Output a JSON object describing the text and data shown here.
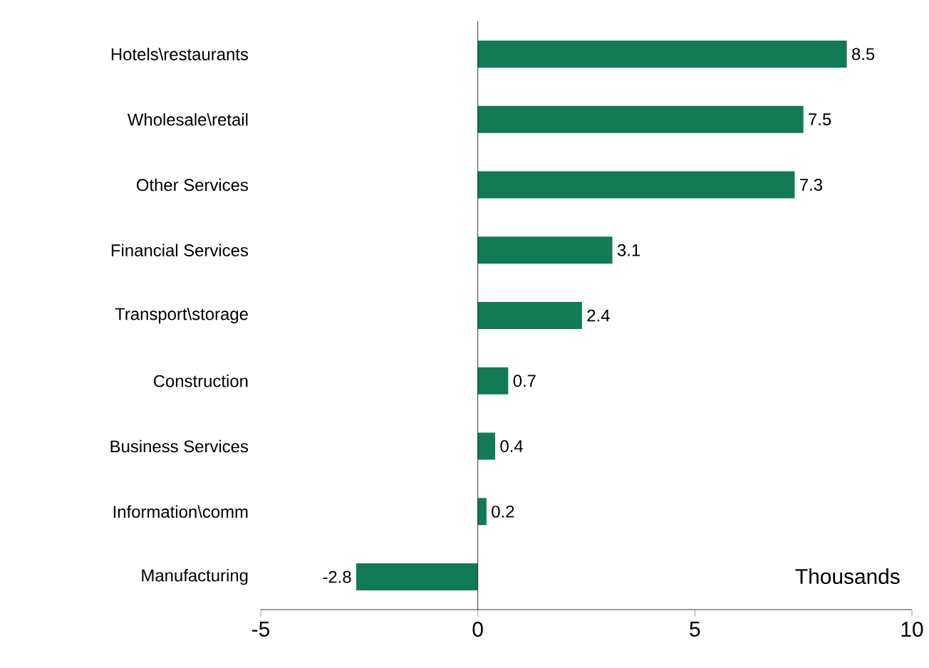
{
  "chart_data": {
    "type": "bar",
    "orientation": "horizontal",
    "categories": [
      "Hotels\\restaurants",
      "Wholesale\\retail",
      "Other Services",
      "Financial Services",
      "Transport\\storage",
      "Construction",
      "Business Services",
      "Information\\comm",
      "Manufacturing"
    ],
    "values": [
      8.5,
      7.5,
      7.3,
      3.1,
      2.4,
      0.7,
      0.4,
      0.2,
      -2.8
    ],
    "color": "#127a55",
    "xlim": [
      -5,
      10
    ],
    "xticks": [
      -5,
      0,
      5,
      10
    ],
    "data_labels": true,
    "annotations": [
      "Thousands"
    ]
  }
}
